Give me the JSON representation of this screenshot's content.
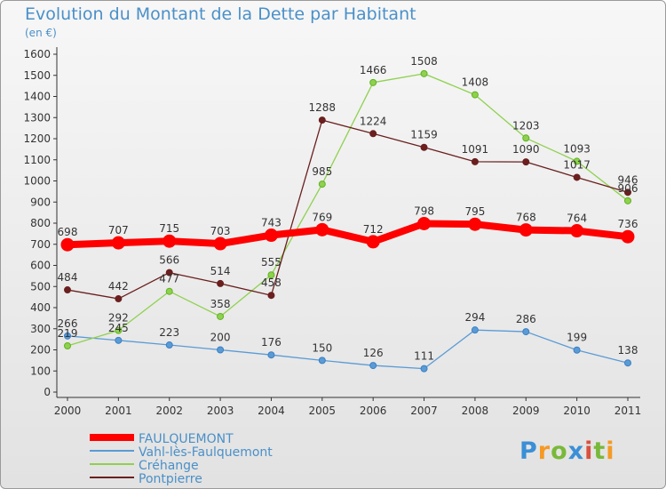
{
  "title": "Evolution du Montant de la Dette par Habitant",
  "subtitle": "(en €)",
  "logo": {
    "text": "Proxiti",
    "colors": [
      "#3b8fd6",
      "#f59a23",
      "#79b93a",
      "#3b8fd6",
      "#d9503f",
      "#79b93a",
      "#f59a23"
    ]
  },
  "chart_data": {
    "type": "line",
    "title": "Evolution du Montant de la Dette par Habitant",
    "subtitle": "(en €)",
    "x": [
      "2000",
      "2001",
      "2002",
      "2003",
      "2004",
      "2005",
      "2006",
      "2007",
      "2008",
      "2009",
      "2010",
      "2011"
    ],
    "yticks": [
      0,
      100,
      200,
      300,
      400,
      500,
      600,
      700,
      800,
      900,
      1000,
      1100,
      1200,
      1300,
      1400,
      1500,
      1600
    ],
    "ylim": [
      0,
      1600
    ],
    "grid": false,
    "legend_position": "bottom-left",
    "series": [
      {
        "name": "FAULQUEMONT",
        "color": "#ff0000",
        "values": [
          698,
          707,
          715,
          703,
          743,
          769,
          712,
          798,
          795,
          768,
          764,
          736
        ]
      },
      {
        "name": "Vahl-lès-Faulquemont",
        "color": "#5b9bd5",
        "values": [
          266,
          245,
          223,
          200,
          176,
          150,
          126,
          111,
          294,
          286,
          199,
          138
        ]
      },
      {
        "name": "Créhange",
        "color": "#8fd14f",
        "values": [
          219,
          292,
          477,
          358,
          555,
          985,
          1466,
          1508,
          1408,
          1203,
          1093,
          906
        ]
      },
      {
        "name": "Pontpierre",
        "color": "#6b1f1f",
        "values": [
          484,
          442,
          566,
          514,
          458,
          1288,
          1224,
          1159,
          1091,
          1090,
          1017,
          946
        ]
      }
    ]
  }
}
